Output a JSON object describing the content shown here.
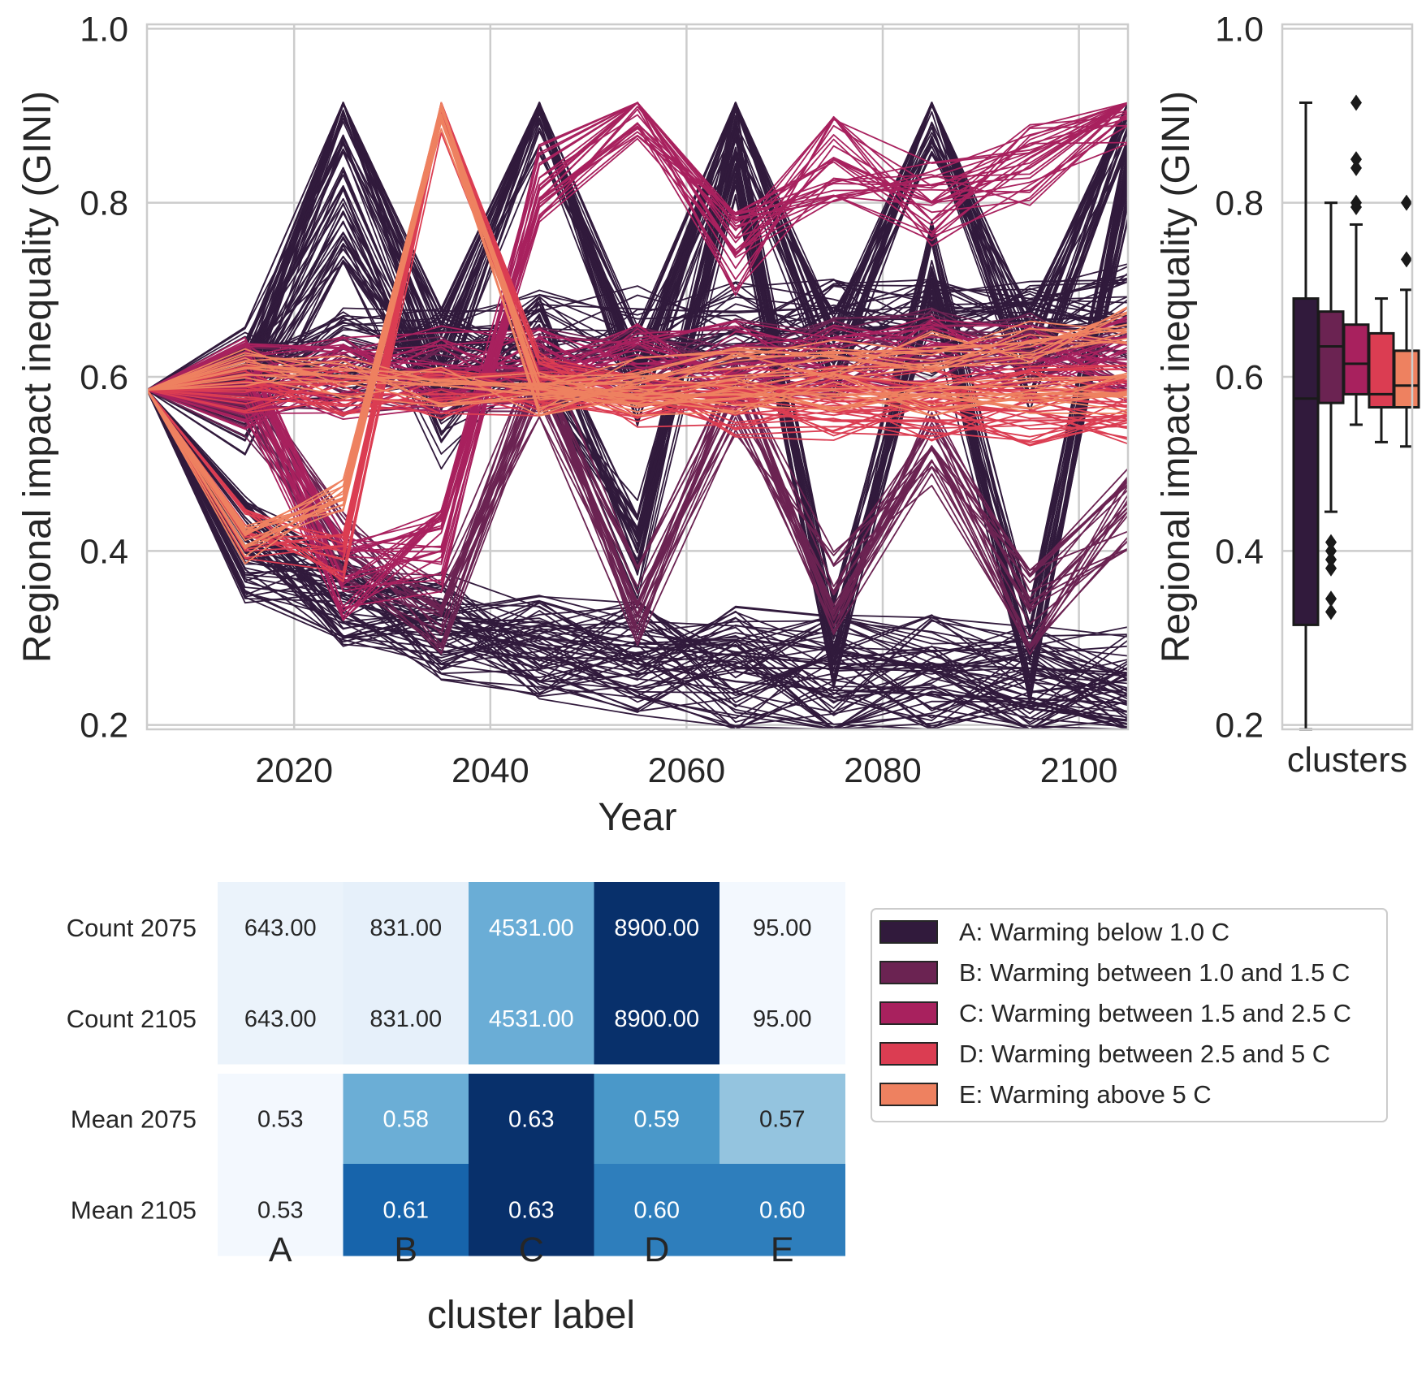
{
  "line_panel": {
    "xlabel": "Year",
    "ylabel": "Regional impact inequality (GINI)",
    "x_ticks": [
      "2020",
      "2040",
      "2060",
      "2080",
      "2100"
    ],
    "y_ticks": [
      "0.2",
      "0.4",
      "0.6",
      "0.8",
      "1.0"
    ]
  },
  "box_panel": {
    "xlabel": "clusters",
    "ylabel": "Regional impact inequality (GINI)",
    "y_ticks": [
      "0.2",
      "0.4",
      "0.6",
      "0.8",
      "1.0"
    ]
  },
  "heatmap_panel": {
    "xlabel": "cluster label",
    "columns": [
      "A",
      "B",
      "C",
      "D",
      "E"
    ],
    "rows": [
      "Count 2075",
      "Count 2105",
      "Mean 2075",
      "Mean 2105"
    ],
    "cell_text": [
      [
        "643.00",
        "831.00",
        "4531.00",
        "8900.00",
        "95.00"
      ],
      [
        "643.00",
        "831.00",
        "4531.00",
        "8900.00",
        "95.00"
      ],
      [
        "0.53",
        "0.58",
        "0.63",
        "0.59",
        "0.57"
      ],
      [
        "0.53",
        "0.61",
        "0.63",
        "0.60",
        "0.60"
      ]
    ]
  },
  "legend": {
    "entries": [
      "A: Warming below 1.0 C",
      "B: Warming between 1.0 and 1.5 C",
      "C: Warming between 1.5 and 2.5 C",
      "D: Warming between 2.5 and 5 C",
      "E: Warming above 5 C"
    ]
  },
  "colors": {
    "A": "#311a3c",
    "B": "#6b2352",
    "C": "#a8215e",
    "D": "#db3d52",
    "E": "#ee8160",
    "heat_low": "#f7fbff",
    "heat_high": "#08306b",
    "grid": "#cccccc"
  },
  "chart_data": [
    {
      "type": "line",
      "xlabel": "Year",
      "ylabel": "Regional impact inequality (GINI)",
      "xlim": [
        2005,
        2105
      ],
      "ylim": [
        0.195,
        1.005
      ],
      "x": [
        2005,
        2015,
        2025,
        2035,
        2045,
        2055,
        2065,
        2075,
        2085,
        2095,
        2105
      ],
      "grid": true,
      "series": [
        {
          "cluster": "A",
          "representative_paths": [
            [
              0.585,
              0.6,
              0.62,
              0.64,
              0.64,
              0.645,
              0.65,
              0.655,
              0.66,
              0.665,
              0.67
            ],
            [
              0.585,
              0.6,
              0.915,
              0.62,
              0.915,
              0.6,
              0.915,
              0.62,
              0.915,
              0.62,
              0.915
            ],
            [
              0.585,
              0.405,
              0.345,
              0.31,
              0.29,
              0.27,
              0.25,
              0.24,
              0.235,
              0.23,
              0.225
            ],
            [
              0.585,
              0.4,
              0.35,
              0.32,
              0.3,
              0.29,
              0.28,
              0.27,
              0.27,
              0.265,
              0.26
            ],
            [
              0.585,
              0.57,
              0.79,
              0.55,
              0.64,
              0.4,
              0.86,
              0.3,
              0.72,
              0.28,
              0.84
            ]
          ]
        },
        {
          "cluster": "B",
          "representative_paths": [
            [
              0.585,
              0.59,
              0.6,
              0.6,
              0.61,
              0.61,
              0.62,
              0.62,
              0.63,
              0.63,
              0.63
            ],
            [
              0.585,
              0.58,
              0.4,
              0.33,
              0.6,
              0.34,
              0.58,
              0.35,
              0.52,
              0.33,
              0.45
            ]
          ]
        },
        {
          "cluster": "C",
          "representative_paths": [
            [
              0.585,
              0.59,
              0.6,
              0.61,
              0.61,
              0.615,
              0.615,
              0.62,
              0.62,
              0.62,
              0.62
            ],
            [
              0.585,
              0.6,
              0.37,
              0.4,
              0.82,
              0.915,
              0.74,
              0.85,
              0.8,
              0.84,
              0.915
            ]
          ]
        },
        {
          "cluster": "D",
          "representative_paths": [
            [
              0.585,
              0.585,
              0.58,
              0.58,
              0.58,
              0.58,
              0.585,
              0.585,
              0.585,
              0.585,
              0.585
            ],
            [
              0.585,
              0.42,
              0.39,
              0.91,
              0.6,
              0.57,
              0.56,
              0.55,
              0.55,
              0.55,
              0.55
            ]
          ]
        },
        {
          "cluster": "E",
          "representative_paths": [
            [
              0.585,
              0.61,
              0.6,
              0.59,
              0.58,
              0.58,
              0.58,
              0.58,
              0.58,
              0.58,
              0.58
            ],
            [
              0.585,
              0.405,
              0.46,
              0.91,
              0.58,
              0.6,
              0.61,
              0.62,
              0.63,
              0.64,
              0.66
            ]
          ]
        }
      ]
    },
    {
      "type": "box",
      "xlabel": "clusters",
      "ylabel": "Regional impact inequality (GINI)",
      "ylim": [
        0.195,
        1.005
      ],
      "boxes": [
        {
          "cluster": "A",
          "whislo": 0.195,
          "q1": 0.315,
          "med": 0.575,
          "q3": 0.69,
          "whishi": 0.915,
          "fliers": []
        },
        {
          "cluster": "B",
          "whislo": 0.445,
          "q1": 0.57,
          "med": 0.635,
          "q3": 0.675,
          "whishi": 0.8,
          "fliers": [
            0.33,
            0.345,
            0.38,
            0.39,
            0.4,
            0.41
          ]
        },
        {
          "cluster": "C",
          "whislo": 0.545,
          "q1": 0.58,
          "med": 0.615,
          "q3": 0.66,
          "whishi": 0.775,
          "fliers": [
            0.795,
            0.8,
            0.84,
            0.85,
            0.915
          ]
        },
        {
          "cluster": "D",
          "whislo": 0.525,
          "q1": 0.565,
          "med": 0.58,
          "q3": 0.65,
          "whishi": 0.69,
          "fliers": []
        },
        {
          "cluster": "E",
          "whislo": 0.52,
          "q1": 0.565,
          "med": 0.59,
          "q3": 0.63,
          "whishi": 0.7,
          "fliers": [
            0.735,
            0.8
          ]
        }
      ]
    },
    {
      "type": "heatmap",
      "xlabel": "cluster label",
      "columns": [
        "A",
        "B",
        "C",
        "D",
        "E"
      ],
      "rows": [
        "Count 2075",
        "Count 2105",
        "Mean 2075",
        "Mean 2105"
      ],
      "values": [
        [
          643,
          831,
          4531,
          8900,
          95
        ],
        [
          643,
          831,
          4531,
          8900,
          95
        ],
        [
          0.53,
          0.58,
          0.63,
          0.59,
          0.57
        ],
        [
          0.53,
          0.61,
          0.63,
          0.6,
          0.6
        ]
      ]
    }
  ]
}
